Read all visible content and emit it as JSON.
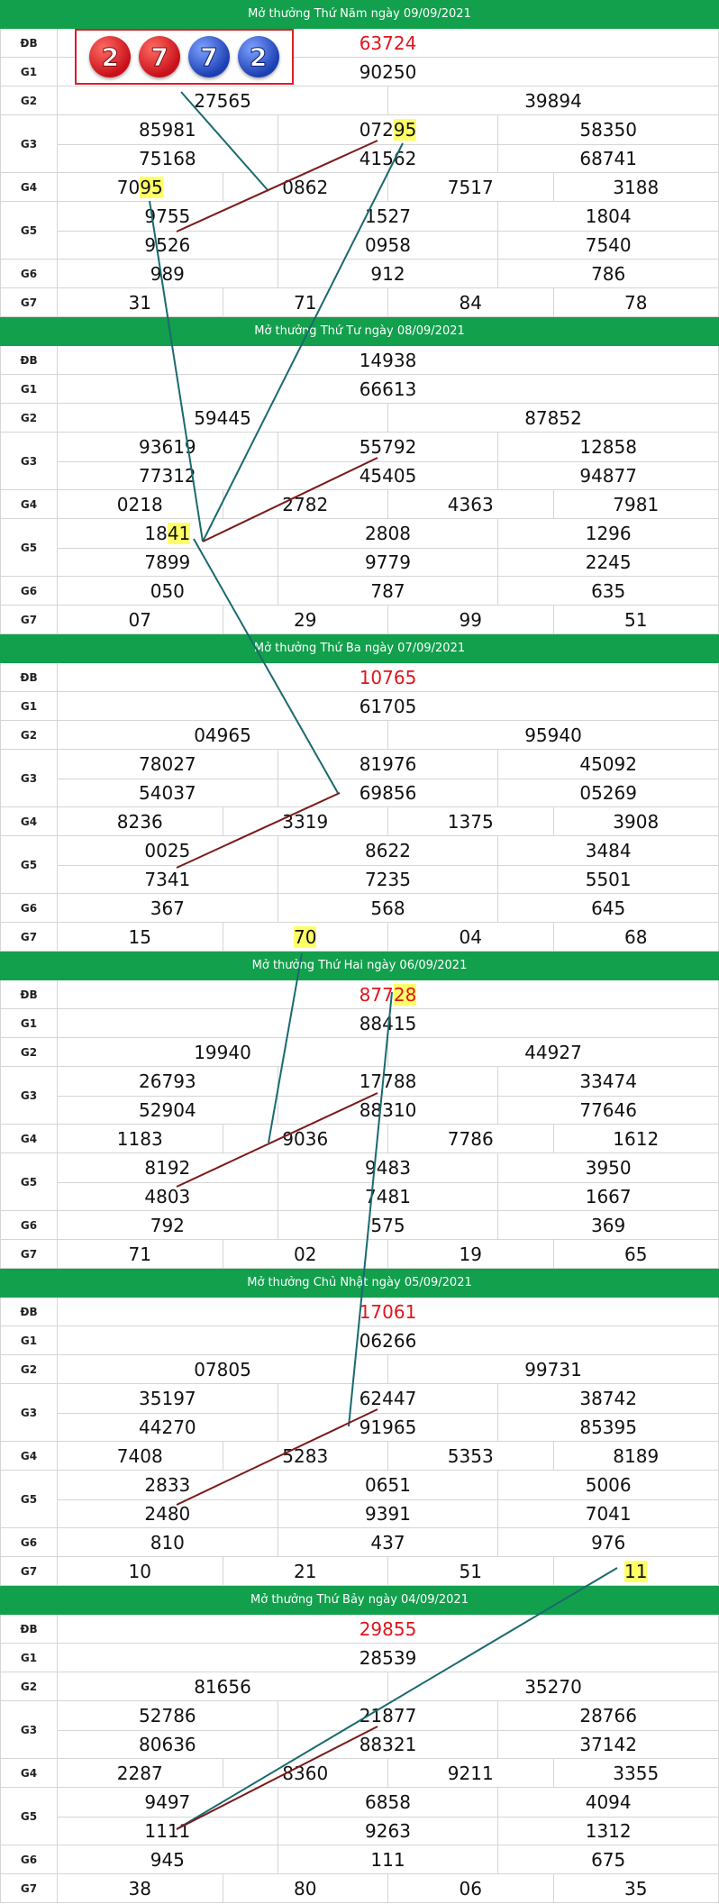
{
  "sections": [
    {
      "title": "Mở thưởng Thứ Năm ngày 09/09/2021",
      "db": "63724",
      "g1": "90250",
      "g2": [
        "27565",
        "39894"
      ],
      "g3a": [
        "85981",
        "07295",
        "58350"
      ],
      "g3b": [
        "75168",
        "41562",
        "68741"
      ],
      "g4": [
        "7095",
        "0862",
        "7517",
        "3188"
      ],
      "g5a": [
        "9755",
        "1527",
        "1804"
      ],
      "g5b": [
        "9526",
        "0958",
        "7540"
      ],
      "g6": [
        "989",
        "912",
        "786"
      ],
      "g7": [
        "31",
        "71",
        "84",
        "78"
      ]
    },
    {
      "title": "Mở thưởng Thứ Tư ngày 08/09/2021",
      "db": "14938",
      "g1": "66613",
      "g2": [
        "59445",
        "87852"
      ],
      "g3a": [
        "93619",
        "55792",
        "12858"
      ],
      "g3b": [
        "77312",
        "45405",
        "94877"
      ],
      "g4": [
        "0218",
        "2782",
        "4363",
        "7981"
      ],
      "g5a": [
        "1841",
        "2808",
        "1296"
      ],
      "g5b": [
        "7899",
        "9779",
        "2245"
      ],
      "g6": [
        "050",
        "787",
        "635"
      ],
      "g7": [
        "07",
        "29",
        "99",
        "51"
      ]
    },
    {
      "title": "Mở thưởng Thứ Ba ngày 07/09/2021",
      "db": "10765",
      "g1": "61705",
      "g2": [
        "04965",
        "95940"
      ],
      "g3a": [
        "78027",
        "81976",
        "45092"
      ],
      "g3b": [
        "54037",
        "69856",
        "05269"
      ],
      "g4": [
        "8236",
        "3319",
        "1375",
        "3908"
      ],
      "g5a": [
        "0025",
        "8622",
        "3484"
      ],
      "g5b": [
        "7341",
        "7235",
        "5501"
      ],
      "g6": [
        "367",
        "568",
        "645"
      ],
      "g7": [
        "15",
        "70",
        "04",
        "68"
      ]
    },
    {
      "title": "Mở thưởng Thứ Hai ngày 06/09/2021",
      "db": "87728",
      "g1": "88415",
      "g2": [
        "19940",
        "44927"
      ],
      "g3a": [
        "26793",
        "17788",
        "33474"
      ],
      "g3b": [
        "52904",
        "88310",
        "77646"
      ],
      "g4": [
        "1183",
        "9036",
        "7786",
        "1612"
      ],
      "g5a": [
        "8192",
        "9483",
        "3950"
      ],
      "g5b": [
        "4803",
        "7481",
        "1667"
      ],
      "g6": [
        "792",
        "575",
        "369"
      ],
      "g7": [
        "71",
        "02",
        "19",
        "65"
      ]
    },
    {
      "title": "Mở thưởng Chủ Nhật ngày 05/09/2021",
      "db": "17061",
      "g1": "06266",
      "g2": [
        "07805",
        "99731"
      ],
      "g3a": [
        "35197",
        "62447",
        "38742"
      ],
      "g3b": [
        "44270",
        "91965",
        "85395"
      ],
      "g4": [
        "7408",
        "5283",
        "5353",
        "8189"
      ],
      "g5a": [
        "2833",
        "0651",
        "5006"
      ],
      "g5b": [
        "2480",
        "9391",
        "7041"
      ],
      "g6": [
        "810",
        "437",
        "976"
      ],
      "g7": [
        "10",
        "21",
        "51",
        "11"
      ]
    },
    {
      "title": "Mở thưởng Thứ Bảy ngày 04/09/2021",
      "db": "29855",
      "g1": "28539",
      "g2": [
        "81656",
        "35270"
      ],
      "g3a": [
        "52786",
        "21877",
        "28766"
      ],
      "g3b": [
        "80636",
        "88321",
        "37142"
      ],
      "g4": [
        "2287",
        "8360",
        "9211",
        "3355"
      ],
      "g5a": [
        "9497",
        "6858",
        "4094"
      ],
      "g5b": [
        "1111",
        "9263",
        "1312"
      ],
      "g6": [
        "945",
        "111",
        "675"
      ],
      "g7": [
        "38",
        "80",
        "06",
        "35"
      ]
    }
  ],
  "labels": {
    "db": "ĐB",
    "g1": "G1",
    "g2": "G2",
    "g3": "G3",
    "g4": "G4",
    "g5": "G5",
    "g6": "G6",
    "g7": "G7"
  },
  "balls": [
    {
      "digit": "2",
      "color": "red"
    },
    {
      "digit": "7",
      "color": "red"
    },
    {
      "digit": "7",
      "color": "blue"
    },
    {
      "digit": "2",
      "color": "blue"
    }
  ],
  "colors": {
    "header_green": "#12a04c",
    "special_red": "#e0151d",
    "highlight": "#ffff66",
    "line_teal": "#1a6a6e",
    "line_maroon": "#7a1a1a"
  }
}
